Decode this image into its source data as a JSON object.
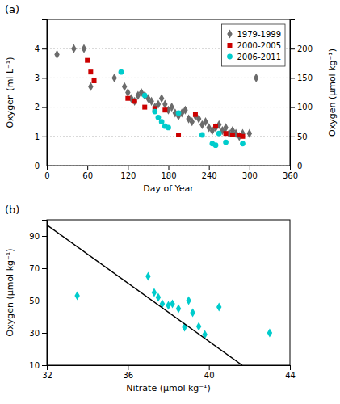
{
  "chart_data": [
    {
      "type": "scatter",
      "title": "(a)",
      "xlabel": "Day of Year",
      "ylabel": "Oxygen (ml L⁻¹)",
      "y2label": "Oxygen (μmol kg⁻¹)",
      "xlim": [
        0,
        360
      ],
      "ylim": [
        0,
        5
      ],
      "y2lim": [
        0,
        250
      ],
      "xticks": [
        0,
        60,
        120,
        180,
        240,
        300,
        360
      ],
      "yticks": [
        0,
        1,
        2,
        3,
        4
      ],
      "y2ticks": [
        0,
        50,
        100,
        150,
        200
      ],
      "grid": true,
      "legend": "upper right",
      "series": [
        {
          "name": "1979-1999",
          "color": "#6b6b6b",
          "marker": "diamond",
          "x": [
            15,
            40,
            55,
            65,
            100,
            115,
            120,
            125,
            130,
            135,
            140,
            145,
            150,
            155,
            160,
            165,
            170,
            175,
            180,
            185,
            190,
            195,
            200,
            205,
            210,
            215,
            220,
            225,
            230,
            235,
            240,
            245,
            250,
            255,
            260,
            265,
            270,
            275,
            280,
            285,
            290,
            300,
            310
          ],
          "values": [
            3.8,
            4.0,
            4.0,
            2.7,
            3.0,
            2.7,
            2.5,
            2.3,
            2.2,
            2.4,
            2.5,
            2.4,
            2.3,
            2.2,
            2.0,
            2.1,
            2.3,
            2.1,
            1.9,
            2.0,
            1.8,
            1.7,
            1.8,
            1.9,
            1.6,
            1.5,
            1.7,
            1.6,
            1.4,
            1.5,
            1.3,
            1.2,
            1.3,
            1.4,
            1.2,
            1.3,
            1.1,
            1.2,
            1.1,
            1.0,
            1.1,
            1.1,
            3.0
          ]
        },
        {
          "name": "2000-2005",
          "color": "#cc0000",
          "marker": "square",
          "x": [
            60,
            65,
            70,
            120,
            130,
            145,
            160,
            175,
            195,
            220,
            250,
            265,
            275,
            285,
            290
          ],
          "values": [
            3.6,
            3.2,
            2.9,
            2.3,
            2.2,
            2.0,
            1.95,
            1.9,
            1.05,
            1.75,
            1.35,
            1.1,
            1.05,
            1.05,
            1.0
          ]
        },
        {
          "name": "2006-2011",
          "color": "#00cccc",
          "marker": "circle",
          "x": [
            110,
            145,
            160,
            165,
            170,
            175,
            180,
            195,
            230,
            245,
            250,
            255,
            265,
            290
          ],
          "values": [
            3.2,
            2.4,
            1.85,
            1.65,
            1.5,
            1.35,
            1.3,
            1.8,
            1.05,
            0.75,
            0.7,
            1.1,
            0.8,
            0.75
          ]
        }
      ]
    },
    {
      "type": "scatter",
      "title": "(b)",
      "xlabel": "Nitrate (μmol kg⁻¹)",
      "ylabel": "Oxygen (μmol kg⁻¹)",
      "xlim": [
        32,
        44
      ],
      "ylim": [
        10,
        100
      ],
      "xticks": [
        32,
        36,
        40,
        44
      ],
      "yticks": [
        10,
        30,
        50,
        70,
        90
      ],
      "grid": false,
      "series": [
        {
          "color": "#00cccc",
          "marker": "diamond",
          "x": [
            33.5,
            37.0,
            37.3,
            37.5,
            37.7,
            38.0,
            38.2,
            38.5,
            38.8,
            39.0,
            39.2,
            39.5,
            39.8,
            40.5,
            43.0
          ],
          "values": [
            53.0,
            65.0,
            55.0,
            52.0,
            48.0,
            47.0,
            48.0,
            45.0,
            33.5,
            50.0,
            42.5,
            34.0,
            29.0,
            46.0,
            30.0
          ]
        },
        {
          "type": "line",
          "color": "#000000",
          "line_style": "solid",
          "x": [
            32,
            41.644444444444446
          ],
          "values": [
            96.8,
            10
          ]
        }
      ]
    }
  ]
}
